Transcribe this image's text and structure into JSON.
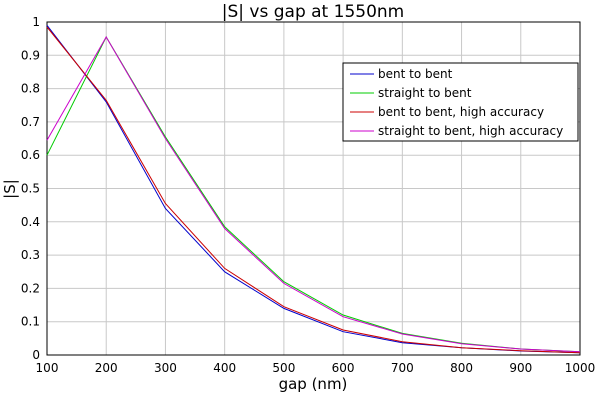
{
  "chart_data": {
    "type": "line",
    "title": "|S| vs gap at 1550nm",
    "xlabel": "gap (nm)",
    "ylabel": "|S|",
    "xlim": [
      100,
      1000
    ],
    "ylim": [
      0,
      1
    ],
    "grid": true,
    "legend_position": "top-right",
    "x_ticks": [
      "100",
      "200",
      "300",
      "400",
      "500",
      "600",
      "700",
      "800",
      "900",
      "1000"
    ],
    "y_ticks": [
      "0",
      "0.1",
      "0.2",
      "0.3",
      "0.4",
      "0.5",
      "0.6",
      "0.7",
      "0.8",
      "0.9",
      "1"
    ],
    "x": [
      100,
      200,
      300,
      400,
      500,
      600,
      700,
      800,
      900,
      1000
    ],
    "series": [
      {
        "name": "bent to bent",
        "color": "#0000cc",
        "values": [
          0.99,
          0.76,
          0.44,
          0.25,
          0.14,
          0.07,
          0.037,
          0.022,
          0.012,
          0.007
        ]
      },
      {
        "name": "straight to bent",
        "color": "#00cc00",
        "values": [
          0.6,
          0.955,
          0.655,
          0.385,
          0.22,
          0.12,
          0.065,
          0.035,
          0.018,
          0.01
        ]
      },
      {
        "name": "bent to bent, high accuracy",
        "color": "#cc0000",
        "values": [
          0.985,
          0.765,
          0.455,
          0.26,
          0.145,
          0.075,
          0.04,
          0.022,
          0.013,
          0.007
        ]
      },
      {
        "name": "straight to bent, high accuracy",
        "color": "#cc00cc",
        "values": [
          0.645,
          0.955,
          0.65,
          0.38,
          0.215,
          0.115,
          0.063,
          0.034,
          0.018,
          0.01
        ]
      }
    ]
  }
}
